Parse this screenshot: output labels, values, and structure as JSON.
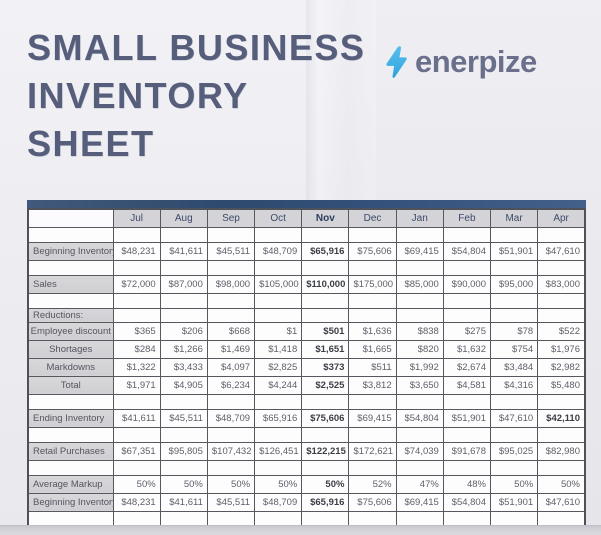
{
  "header": {
    "title_line1": "SMALL BUSINESS",
    "title_line2": "INVENTORY",
    "title_line3": "SHEET",
    "title_color": "#575e7c",
    "logo": {
      "text": "enerpize",
      "icon": "lightning-bolt-icon",
      "bolt_color_top": "#55bdec",
      "bolt_color_bottom": "#2ea2dc",
      "text_color": "#6a6f8b"
    }
  },
  "table": {
    "accent_bar_color": "#33507a",
    "columns": [
      "Jul",
      "Aug",
      "Sep",
      "Oct",
      "Nov",
      "Dec",
      "Jan",
      "Feb",
      "Mar",
      "Apr"
    ],
    "bold_column_index": 4,
    "rows": [
      {
        "type": "spacer"
      },
      {
        "type": "data",
        "label": "Beginning Inventory",
        "values": [
          "$48,231",
          "$41,611",
          "$45,511",
          "$48,709",
          "$65,916",
          "$75,606",
          "$69,415",
          "$54,804",
          "$51,901",
          "$47,610"
        ]
      },
      {
        "type": "spacer"
      },
      {
        "type": "data",
        "label": "Sales",
        "values": [
          "$72,000",
          "$87,000",
          "$98,000",
          "$105,000",
          "$110,000",
          "$175,000",
          "$85,000",
          "$90,000",
          "$95,000",
          "$83,000"
        ]
      },
      {
        "type": "spacer"
      },
      {
        "type": "section",
        "label": "Reductions:"
      },
      {
        "type": "data",
        "label": "Employee discount",
        "indent": true,
        "values": [
          "$365",
          "$206",
          "$668",
          "$1",
          "$501",
          "$1,636",
          "$838",
          "$275",
          "$78",
          "$522"
        ]
      },
      {
        "type": "data",
        "label": "Shortages",
        "indent": true,
        "values": [
          "$284",
          "$1,266",
          "$1,469",
          "$1,418",
          "$1,651",
          "$1,665",
          "$820",
          "$1,632",
          "$754",
          "$1,976"
        ]
      },
      {
        "type": "data",
        "label": "Markdowns",
        "indent": true,
        "values": [
          "$1,322",
          "$3,433",
          "$4,097",
          "$2,825",
          "$373",
          "$511",
          "$1,992",
          "$2,674",
          "$3,484",
          "$2,982"
        ]
      },
      {
        "type": "data",
        "label": "Total",
        "indent": true,
        "values": [
          "$1,971",
          "$4,905",
          "$6,234",
          "$4,244",
          "$2,525",
          "$3,812",
          "$3,650",
          "$4,581",
          "$4,316",
          "$5,480"
        ]
      },
      {
        "type": "spacer"
      },
      {
        "type": "data",
        "label": "Ending Inventory",
        "bold_cols": [
          4,
          9
        ],
        "values": [
          "$41,611",
          "$45,511",
          "$48,709",
          "$65,916",
          "$75,606",
          "$69,415",
          "$54,804",
          "$51,901",
          "$47,610",
          "$42,110"
        ]
      },
      {
        "type": "spacer"
      },
      {
        "type": "data",
        "label": "Retail Purchases",
        "values": [
          "$67,351",
          "$95,805",
          "$107,432",
          "$126,451",
          "$122,215",
          "$172,621",
          "$74,039",
          "$91,678",
          "$95,025",
          "$82,980"
        ]
      },
      {
        "type": "spacer"
      },
      {
        "type": "data",
        "label": "Average Markup",
        "values": [
          "50%",
          "50%",
          "50%",
          "50%",
          "50%",
          "52%",
          "47%",
          "48%",
          "50%",
          "50%"
        ]
      },
      {
        "type": "data",
        "label": "Beginning Inventory",
        "values": [
          "$48,231",
          "$41,611",
          "$45,511",
          "$48,709",
          "$65,916",
          "$75,606",
          "$69,415",
          "$54,804",
          "$51,901",
          "$47,610"
        ]
      },
      {
        "type": "spacer"
      }
    ]
  }
}
